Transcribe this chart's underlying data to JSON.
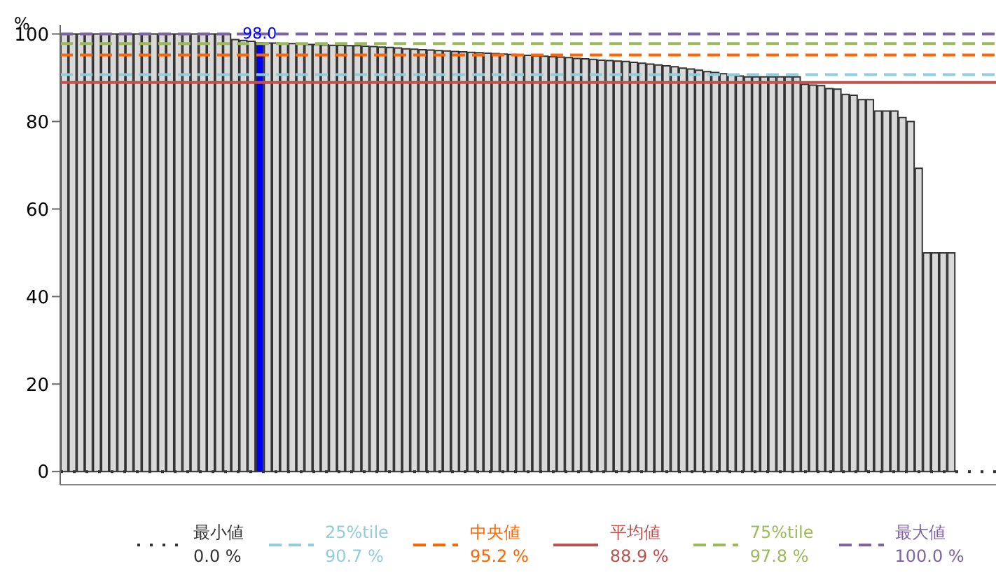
{
  "chart_data": {
    "type": "bar",
    "ylabel": "%",
    "categories": [
      null,
      null,
      null,
      null,
      null,
      null,
      null,
      null,
      null,
      null,
      null,
      null,
      null,
      null,
      null,
      null,
      null,
      null,
      null,
      null,
      null,
      null,
      null,
      null,
      null,
      null,
      null,
      null,
      null,
      null,
      null,
      null,
      null,
      null,
      null,
      null,
      null,
      null,
      null,
      null,
      null,
      null,
      null,
      null,
      null,
      null,
      null,
      null,
      null,
      null,
      null,
      null,
      null,
      null,
      null,
      null,
      null,
      null,
      null,
      null,
      null,
      null,
      null,
      null,
      null,
      null,
      null,
      null,
      null,
      null,
      null,
      null,
      null,
      null,
      null,
      null,
      null,
      null,
      null,
      null,
      null,
      null,
      null,
      null,
      null,
      null,
      null,
      null,
      null,
      null,
      null,
      null,
      null,
      null,
      null,
      null,
      null,
      null,
      null,
      null,
      null,
      null,
      null,
      null,
      null,
      null,
      null,
      null,
      null,
      null,
      null,
      null,
      null,
      null,
      null
    ],
    "values": [
      100,
      100,
      100,
      100,
      100,
      100,
      100,
      100,
      100,
      100,
      100,
      100,
      100,
      100,
      100,
      100,
      100,
      100,
      100,
      100,
      100,
      98.7,
      98.5,
      98.3,
      98.0,
      97.9,
      97.9,
      97.8,
      97.8,
      97.7,
      97.6,
      97.6,
      97.5,
      97.4,
      97.4,
      97.3,
      97.3,
      97.2,
      97.1,
      97.0,
      96.9,
      96.8,
      96.6,
      96.5,
      96.4,
      96.3,
      96.2,
      96.1,
      96.0,
      95.9,
      95.8,
      95.7,
      95.6,
      95.5,
      95.4,
      95.3,
      95.2,
      95.1,
      95.0,
      94.9,
      94.8,
      94.7,
      94.6,
      94.4,
      94.3,
      94.2,
      94.0,
      93.9,
      93.8,
      93.7,
      93.5,
      93.3,
      93.1,
      92.9,
      92.7,
      92.5,
      92.2,
      92.0,
      91.7,
      91.4,
      91.2,
      90.9,
      90.6,
      90.4,
      90.2,
      90.2,
      90.2,
      90.2,
      90.2,
      90.2,
      90.2,
      88.5,
      88.3,
      88.2,
      87.5,
      87.4,
      86.2,
      86.0,
      85.0,
      85.0,
      82.4,
      82.4,
      82.4,
      80.9,
      80.0,
      69.3,
      50,
      50,
      50,
      50,
      0,
      0,
      0,
      0,
      0
    ],
    "colors": [
      "#d9d9d9",
      "#d9d9d9",
      "#d9d9d9",
      "#d9d9d9",
      "#d9d9d9",
      "#d9d9d9",
      "#d9d9d9",
      "#d9d9d9",
      "#d9d9d9",
      "#d9d9d9",
      "#d9d9d9",
      "#d9d9d9",
      "#d9d9d9",
      "#d9d9d9",
      "#d9d9d9",
      "#d9d9d9",
      "#d9d9d9",
      "#d9d9d9",
      "#d9d9d9",
      "#d9d9d9",
      "#d9d9d9",
      "#d9d9d9",
      "#d9d9d9",
      "#d9d9d9",
      "#0000ff",
      "#d9d9d9",
      "#d9d9d9",
      "#d9d9d9",
      "#d9d9d9",
      "#d9d9d9",
      "#d9d9d9",
      "#d9d9d9",
      "#d9d9d9",
      "#d9d9d9",
      "#d9d9d9",
      "#d9d9d9",
      "#d9d9d9",
      "#d9d9d9",
      "#d9d9d9",
      "#d9d9d9",
      "#d9d9d9",
      "#d9d9d9",
      "#d9d9d9",
      "#d9d9d9",
      "#d9d9d9",
      "#d9d9d9",
      "#d9d9d9",
      "#d9d9d9",
      "#d9d9d9",
      "#d9d9d9",
      "#d9d9d9",
      "#d9d9d9",
      "#d9d9d9",
      "#d9d9d9",
      "#d9d9d9",
      "#d9d9d9",
      "#d9d9d9",
      "#d9d9d9",
      "#d9d9d9",
      "#d9d9d9",
      "#d9d9d9",
      "#d9d9d9",
      "#d9d9d9",
      "#d9d9d9",
      "#d9d9d9",
      "#d9d9d9",
      "#d9d9d9",
      "#d9d9d9",
      "#d9d9d9",
      "#d9d9d9",
      "#d9d9d9",
      "#d9d9d9",
      "#d9d9d9",
      "#d9d9d9",
      "#d9d9d9",
      "#d9d9d9",
      "#d9d9d9",
      "#d9d9d9",
      "#d9d9d9",
      "#d9d9d9",
      "#d9d9d9",
      "#d9d9d9",
      "#d9d9d9",
      "#d9d9d9",
      "#d9d9d9",
      "#d9d9d9",
      "#d9d9d9",
      "#d9d9d9",
      "#d9d9d9",
      "#d9d9d9",
      "#d9d9d9",
      "#d9d9d9",
      "#d9d9d9",
      "#d9d9d9",
      "#d9d9d9",
      "#d9d9d9",
      "#d9d9d9",
      "#d9d9d9",
      "#d9d9d9",
      "#d9d9d9",
      "#d9d9d9",
      "#d9d9d9",
      "#d9d9d9",
      "#d9d9d9",
      "#d9d9d9",
      "#d9d9d9",
      "#d9d9d9",
      "#d9d9d9",
      "#d9d9d9",
      "#d9d9d9",
      "#d9d9d9",
      "#d9d9d9",
      "#d9d9d9",
      "#d9d9d9",
      "#d9d9d9"
    ],
    "value_labels": [
      null,
      null,
      null,
      null,
      null,
      null,
      null,
      null,
      null,
      null,
      null,
      null,
      null,
      null,
      null,
      null,
      null,
      null,
      null,
      null,
      null,
      null,
      null,
      null,
      "98.0",
      null,
      null,
      null,
      null,
      null,
      null,
      null,
      null,
      null,
      null,
      null,
      null,
      null,
      null,
      null,
      null,
      null,
      null,
      null,
      null,
      null,
      null,
      null,
      null,
      null,
      null,
      null,
      null,
      null,
      null,
      null,
      null,
      null,
      null,
      null,
      null,
      null,
      null,
      null,
      null,
      null,
      null,
      null,
      null,
      null,
      null,
      null,
      null,
      null,
      null,
      null,
      null,
      null,
      null,
      null,
      null,
      null,
      null,
      null,
      null,
      null,
      null,
      null,
      null,
      null,
      null,
      null,
      null,
      null,
      null,
      null,
      null,
      null,
      null,
      null,
      null,
      null,
      null,
      null,
      null,
      null,
      null,
      null,
      null,
      null,
      null,
      null,
      null,
      null,
      null
    ],
    "ylim": [
      -3,
      102
    ],
    "yticks": [
      0,
      20,
      40,
      60,
      80,
      100
    ],
    "ref_lines": [
      {
        "axis": "y",
        "value": 0,
        "label": "最小値\n0.0 %",
        "color": "#333333",
        "line_style": "dotted"
      },
      {
        "axis": "y",
        "value": 90.7,
        "label": "25%tile\n90.7 %",
        "color": "#92cddc",
        "line_style": "dashed"
      },
      {
        "axis": "y",
        "value": 95.2,
        "label": "中央値\n95.2 %",
        "color": "#ff6600",
        "line_style": "dashed"
      },
      {
        "axis": "y",
        "value": 88.9,
        "label": "平均値\n88.9 %",
        "color": "#c0504d",
        "line_style": "solid"
      },
      {
        "axis": "y",
        "value": 97.8,
        "label": "75%tile\n97.8 %",
        "color": "#9bbb59",
        "line_style": "dashed"
      },
      {
        "axis": "y",
        "value": 100,
        "label": "最大値\n100.0 %",
        "color": "#8064a2",
        "line_style": "dashed"
      }
    ],
    "grid": false,
    "legend": "bottom"
  }
}
